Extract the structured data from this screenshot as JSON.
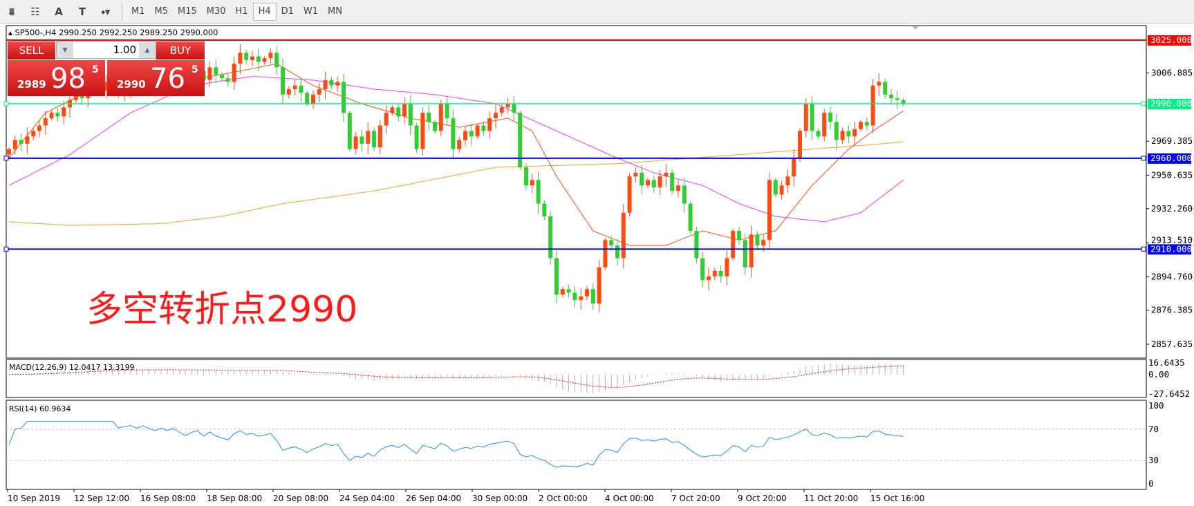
{
  "toolbar": {
    "tools": [
      "indicators",
      "periods-separator",
      "text-A",
      "text-label",
      "arrows"
    ],
    "timeframes": [
      "M1",
      "M5",
      "M15",
      "M30",
      "H1",
      "H4",
      "D1",
      "W1",
      "MN"
    ],
    "active": "H4"
  },
  "chart_title": "SP500-,H4  2990.250 2992.250 2989.250 2990.000",
  "trade_panel": {
    "sell_label": "SELL",
    "buy_label": "BUY",
    "lot": "1.00",
    "sell_prefix": "2989",
    "sell_big": "98",
    "sell_sup": "5",
    "buy_prefix": "2990",
    "buy_big": "76",
    "buy_sup": "5"
  },
  "annotation": "多空转折点2990",
  "colors": {
    "bull": "#ff4a10",
    "bear": "#32cd32",
    "ma_fast": "#ff4a10",
    "ma_mid": "#ff33ff",
    "ma_slow": "#ffa020",
    "resistance": "#ff0000",
    "pivot": "#00f080",
    "support": "#0000ff",
    "rsi": "#1e90ff",
    "macd_signal": "#ff0000"
  },
  "chart_data": {
    "type": "candlestick",
    "symbol": "SP500-",
    "timeframe": "H4",
    "ylim": [
      2851,
      3030
    ],
    "price_axis_labels": [
      "3006.885",
      "2969.385",
      "2950.635",
      "2932.260",
      "2913.510",
      "2894.760",
      "2876.385",
      "2857.635"
    ],
    "time_axis_labels": [
      "10 Sep 2019",
      "12 Sep 12:00",
      "16 Sep 08:00",
      "18 Sep 08:00",
      "20 Sep 08:00",
      "24 Sep 04:00",
      "26 Sep 04:00",
      "30 Sep 00:00",
      "2 Oct 00:00",
      "4 Oct 00:00",
      "7 Oct 20:00",
      "9 Oct 20:00",
      "11 Oct 20:00",
      "15 Oct 16:00"
    ],
    "closes": [
      2965,
      2970,
      2968,
      2972,
      2975,
      2978,
      2982,
      2985,
      2983,
      2988,
      2992,
      2995,
      2993,
      2998,
      3000,
      2997,
      3002,
      3000,
      2995,
      2998,
      3000,
      2998,
      3003,
      3001,
      2999,
      3004,
      3002,
      3006,
      3003,
      3000,
      3005,
      3008,
      3003,
      3010,
      3006,
      3004,
      3002,
      3012,
      3018,
      3014,
      3016,
      3013,
      3015,
      3018,
      3010,
      2995,
      2998,
      3000,
      2996,
      2990,
      2995,
      2998,
      3003,
      3000,
      3002,
      2985,
      2965,
      2972,
      2968,
      2975,
      2966,
      2978,
      2985,
      2988,
      2983,
      2990,
      2978,
      2965,
      2985,
      2980,
      2975,
      2990,
      2982,
      2965,
      2970,
      2975,
      2972,
      2978,
      2975,
      2982,
      2985,
      2988,
      2990,
      2985,
      2955,
      2945,
      2948,
      2935,
      2928,
      2905,
      2885,
      2888,
      2886,
      2882,
      2884,
      2888,
      2880,
      2900,
      2915,
      2912,
      2905,
      2930,
      2950,
      2952,
      2945,
      2948,
      2944,
      2950,
      2952,
      2942,
      2945,
      2935,
      2920,
      2905,
      2893,
      2895,
      2898,
      2895,
      2905,
      2920,
      2915,
      2900,
      2918,
      2912,
      2915,
      2948,
      2940,
      2945,
      2950,
      2960,
      2975,
      2990,
      2975,
      2972,
      2985,
      2980,
      2970,
      2975,
      2972,
      2976,
      2980,
      2978,
      3000,
      3002,
      2995,
      2993,
      2992,
      2990
    ],
    "ma_fast": [
      [
        0,
        2960
      ],
      [
        6,
        2985
      ],
      [
        12,
        2995
      ],
      [
        20,
        3000
      ],
      [
        30,
        3003
      ],
      [
        38,
        3008
      ],
      [
        44,
        3012
      ],
      [
        50,
        3000
      ],
      [
        58,
        2990
      ],
      [
        66,
        2982
      ],
      [
        74,
        2977
      ],
      [
        82,
        2982
      ],
      [
        86,
        2975
      ],
      [
        90,
        2950
      ],
      [
        96,
        2920
      ],
      [
        102,
        2912
      ],
      [
        108,
        2912
      ],
      [
        114,
        2920
      ],
      [
        120,
        2915
      ],
      [
        126,
        2920
      ],
      [
        132,
        2945
      ],
      [
        138,
        2965
      ],
      [
        142,
        2975
      ],
      [
        147,
        2986
      ]
    ],
    "ma_mid": [
      [
        0,
        2945
      ],
      [
        10,
        2962
      ],
      [
        20,
        2985
      ],
      [
        30,
        3000
      ],
      [
        40,
        3005
      ],
      [
        50,
        3003
      ],
      [
        60,
        2998
      ],
      [
        70,
        2995
      ],
      [
        80,
        2990
      ],
      [
        90,
        2975
      ],
      [
        100,
        2960
      ],
      [
        106,
        2952
      ],
      [
        114,
        2945
      ],
      [
        120,
        2935
      ],
      [
        126,
        2928
      ],
      [
        134,
        2925
      ],
      [
        140,
        2930
      ],
      [
        147,
        2948
      ]
    ],
    "ma_slow": [
      [
        0,
        2925
      ],
      [
        10,
        2923
      ],
      [
        25,
        2924
      ],
      [
        35,
        2928
      ],
      [
        45,
        2935
      ],
      [
        60,
        2942
      ],
      [
        80,
        2955
      ],
      [
        100,
        2957
      ],
      [
        120,
        2962
      ],
      [
        140,
        2967
      ],
      [
        147,
        2969
      ]
    ],
    "levels": [
      {
        "price": 3025,
        "label": "3025.000",
        "kind": "resistance"
      },
      {
        "price": 2990,
        "label": "2990.000",
        "kind": "pivot"
      },
      {
        "price": 2960,
        "label": "2960.000",
        "kind": "support"
      },
      {
        "price": 2910,
        "label": "2910.000",
        "kind": "support"
      }
    ],
    "macd": {
      "label": "MACD(12,26,9) 12.0417 13.3199",
      "axis_labels": [
        "16.6435",
        "0.00",
        "-27.6452"
      ],
      "ylim": [
        -27.6452,
        16.6435
      ]
    },
    "rsi": {
      "label": "RSI(14) 60.9634",
      "axis_labels": [
        "100",
        "70",
        "30",
        "0"
      ],
      "levels": [
        70,
        30
      ],
      "ylim": [
        0,
        100
      ]
    }
  }
}
